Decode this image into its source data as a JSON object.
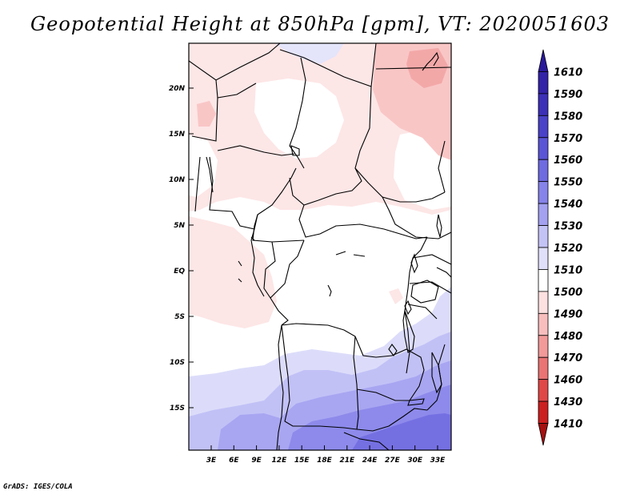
{
  "title": "Geopotential Height at 850hPa [gpm], VT: 2020051603",
  "credit": "GrADS: IGES/COLA",
  "map": {
    "type": "filled-contour map",
    "variable": "Geopotential Height at 850hPa",
    "units": "gpm",
    "valid_time": "2020051603",
    "lat_labels": [
      "20N",
      "15N",
      "10N",
      "5N",
      "EQ",
      "5S",
      "10S",
      "15S"
    ],
    "lon_labels": [
      "3E",
      "6E",
      "9E",
      "12E",
      "15E",
      "18E",
      "21E",
      "24E",
      "27E",
      "30E",
      "33E"
    ],
    "colorbar": {
      "labels": [
        "1610",
        "1590",
        "1580",
        "1570",
        "1560",
        "1550",
        "1540",
        "1530",
        "1520",
        "1510",
        "1500",
        "1490",
        "1480",
        "1470",
        "1460",
        "1430",
        "1410"
      ],
      "colors": [
        "#2a1a9a",
        "#3323a8",
        "#3d30b8",
        "#4a42c8",
        "#5a55d6",
        "#6e6ae0",
        "#8683ea",
        "#a3a1f0",
        "#c4c3f6",
        "#e0e0fb",
        "#ffffff",
        "#fde0e0",
        "#f8bebe",
        "#f29a9a",
        "#ea7474",
        "#e04848",
        "#cc2020",
        "#a51010"
      ]
    }
  }
}
